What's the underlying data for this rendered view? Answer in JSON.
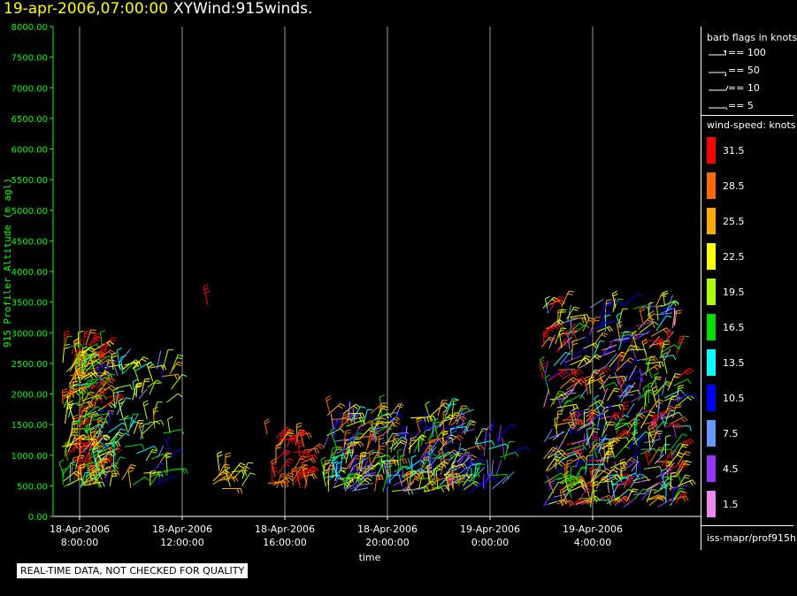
{
  "header": {
    "date": "19-apr-2006,07:00:00",
    "name": "XYWind:915winds."
  },
  "chart_data": {
    "type": "scatter",
    "ylabel": "915 Profiler Altitude (m agl)",
    "xlabel": "time",
    "ylim": [
      0,
      8000
    ],
    "yticks": [
      "0.00",
      "500.00",
      "1000.00",
      "1500.00",
      "2000.00",
      "2500.00",
      "3000.00",
      "3500.00",
      "4000.00",
      "4500.00",
      "5000.00",
      "5500.00",
      "6000.00",
      "6500.00",
      "7000.00",
      "7500.00",
      "8000.00"
    ],
    "xticks": [
      {
        "date": "18-Apr-2006",
        "time": "8:00:00"
      },
      {
        "date": "18-Apr-2006",
        "time": "12:00:00"
      },
      {
        "date": "18-Apr-2006",
        "time": "16:00:00"
      },
      {
        "date": "18-Apr-2006",
        "time": "20:00:00"
      },
      {
        "date": "19-Apr-2006",
        "time": "0:00:00"
      },
      {
        "date": "19-Apr-2006",
        "time": "4:00:00"
      }
    ],
    "grid": "vertical",
    "barb_clusters": [
      {
        "t0": 7.3,
        "t1": 9.0,
        "alt0": 450,
        "alt1": 2800,
        "n": 180,
        "speed": [
          14,
          33
        ]
      },
      {
        "t0": 8.0,
        "t1": 11.7,
        "alt0": 450,
        "alt1": 2500,
        "n": 110,
        "speed": [
          8,
          25
        ]
      },
      {
        "t0": 13.0,
        "t1": 14.7,
        "alt0": 450,
        "alt1": 750,
        "n": 14,
        "speed": [
          18,
          30
        ]
      },
      {
        "t0": 15.3,
        "t1": 16.9,
        "alt0": 450,
        "alt1": 1400,
        "n": 40,
        "speed": [
          25,
          33
        ]
      },
      {
        "t0": 17.5,
        "t1": 23.0,
        "alt0": 400,
        "alt1": 1700,
        "n": 300,
        "speed": [
          2,
          30
        ]
      },
      {
        "t0": 22.8,
        "t1": 24.8,
        "alt0": 350,
        "alt1": 1400,
        "n": 40,
        "speed": [
          3,
          20
        ]
      },
      {
        "t0": 26.0,
        "t1": 31.4,
        "alt0": 150,
        "alt1": 3450,
        "n": 480,
        "speed": [
          1,
          33
        ]
      }
    ],
    "isolated_barbs": [
      {
        "t": 13.0,
        "alt": 3450,
        "speed": 31
      }
    ]
  },
  "legend": {
    "barb_title": "barb flags in knots",
    "barb_items": [
      "== 100",
      "== 50",
      "== 10",
      "== 5"
    ],
    "speed_title": "wind-speed: knots",
    "speed_items": [
      {
        "label": "31.5",
        "color": "#ff0000"
      },
      {
        "label": "28.5",
        "color": "#ff6a00"
      },
      {
        "label": "25.5",
        "color": "#ffaa00"
      },
      {
        "label": "22.5",
        "color": "#ffff00"
      },
      {
        "label": "19.5",
        "color": "#aaff00"
      },
      {
        "label": "16.5",
        "color": "#00e000"
      },
      {
        "label": "13.5",
        "color": "#00ffff"
      },
      {
        "label": "10.5",
        "color": "#0000ff"
      },
      {
        "label": "7.5",
        "color": "#6699ff"
      },
      {
        "label": "4.5",
        "color": "#9933ff"
      },
      {
        "label": "1.5",
        "color": "#ee88ee"
      }
    ],
    "source": "iss-mapr/prof915h"
  },
  "footer": {
    "qc_note": "REAL-TIME DATA, NOT CHECKED FOR QUALITY"
  }
}
